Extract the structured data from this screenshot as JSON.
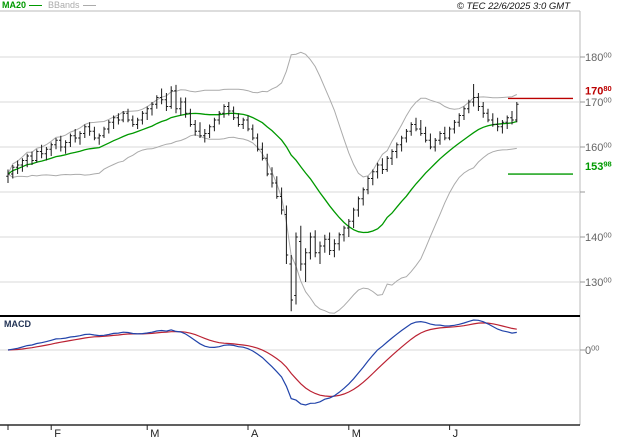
{
  "legend": {
    "ma20_label": "MA20",
    "bbands_label": "BBands"
  },
  "copyright": "© TEC 22/6/2025 3:0 GMT",
  "macd_label": "MACD",
  "colors": {
    "ma20": "#009900",
    "bbands": "#ababab",
    "candle": "#1a1a1a",
    "grid": "#d9d9d9",
    "frame": "#bbbbbb",
    "separator": "#000000",
    "axis_text": "#666666",
    "month_text": "#222222",
    "level_resistance": "#bb0000",
    "level_support": "#009900",
    "macd_line": "#2244aa",
    "macd_signal": "#bb2233"
  },
  "chart_data": {
    "type": "ohlc",
    "title": "Daily price chart with MA20, Bollinger Bands and MACD",
    "months": {
      "labels": [
        "F",
        "M",
        "A",
        "M",
        "J"
      ],
      "start_indices": [
        9,
        29,
        50,
        71,
        92
      ]
    },
    "y_axis": {
      "gridlines": [
        180,
        170,
        160,
        150,
        140,
        130
      ],
      "labeled": [
        180,
        170,
        160,
        140,
        130
      ],
      "price_decimals": 2
    },
    "levels": [
      {
        "value": 170.8,
        "type": "resistance"
      },
      {
        "value": 153.98,
        "type": "support"
      }
    ],
    "macd_zero_label": 0,
    "indicators": {
      "ma_period": 20,
      "bollinger": "20, 2 std",
      "macd": "12,26,9"
    },
    "ohlc": [
      [
        153.5,
        155.0,
        152.0,
        154.0
      ],
      [
        154.0,
        156.0,
        153.0,
        155.5
      ],
      [
        155.5,
        157.0,
        154.0,
        156.0
      ],
      [
        156.0,
        157.5,
        154.5,
        157.0
      ],
      [
        157.0,
        158.5,
        155.5,
        158.0
      ],
      [
        158.0,
        159.0,
        156.0,
        157.0
      ],
      [
        157.0,
        159.5,
        156.5,
        159.0
      ],
      [
        159.0,
        160.5,
        157.5,
        158.5
      ],
      [
        158.5,
        160.0,
        157.0,
        159.5
      ],
      [
        159.5,
        161.0,
        158.0,
        160.5
      ],
      [
        160.5,
        162.0,
        159.5,
        161.5
      ],
      [
        161.5,
        162.5,
        159.0,
        160.0
      ],
      [
        160.0,
        161.5,
        158.5,
        161.0
      ],
      [
        161.0,
        163.0,
        160.0,
        162.5
      ],
      [
        162.5,
        164.0,
        161.0,
        162.0
      ],
      [
        162.0,
        163.5,
        160.5,
        163.0
      ],
      [
        163.0,
        165.0,
        162.0,
        164.5
      ],
      [
        164.5,
        165.5,
        162.5,
        163.5
      ],
      [
        163.5,
        164.5,
        161.5,
        162.0
      ],
      [
        162.0,
        163.0,
        160.5,
        162.5
      ],
      [
        162.5,
        164.5,
        162.0,
        164.0
      ],
      [
        164.0,
        166.0,
        163.0,
        165.5
      ],
      [
        165.5,
        167.0,
        164.0,
        166.5
      ],
      [
        166.5,
        167.5,
        165.0,
        166.0
      ],
      [
        166.0,
        168.0,
        165.5,
        167.5
      ],
      [
        167.5,
        168.5,
        165.5,
        166.0
      ],
      [
        166.0,
        167.0,
        164.5,
        165.0
      ],
      [
        165.0,
        166.5,
        164.0,
        166.0
      ],
      [
        166.0,
        168.0,
        165.0,
        167.5
      ],
      [
        167.5,
        169.0,
        166.0,
        168.5
      ],
      [
        168.5,
        170.0,
        167.0,
        169.5
      ],
      [
        169.5,
        171.5,
        168.5,
        171.0
      ],
      [
        171.0,
        173.0,
        169.5,
        170.5
      ],
      [
        170.5,
        172.0,
        168.0,
        169.0
      ],
      [
        169.0,
        173.5,
        168.5,
        172.5
      ],
      [
        172.5,
        173.8,
        167.5,
        168.5
      ],
      [
        168.5,
        171.0,
        167.0,
        170.0
      ],
      [
        170.0,
        171.0,
        166.5,
        167.5
      ],
      [
        167.5,
        168.5,
        164.5,
        165.0
      ],
      [
        165.0,
        166.0,
        162.5,
        163.5
      ],
      [
        163.5,
        165.5,
        162.0,
        162.5
      ],
      [
        162.5,
        164.0,
        161.0,
        163.0
      ],
      [
        163.0,
        165.0,
        162.0,
        164.5
      ],
      [
        164.5,
        166.5,
        163.5,
        166.0
      ],
      [
        166.0,
        168.0,
        165.0,
        167.5
      ],
      [
        167.5,
        169.5,
        166.5,
        169.0
      ],
      [
        169.0,
        170.0,
        167.0,
        168.0
      ],
      [
        168.0,
        169.0,
        166.0,
        166.5
      ],
      [
        166.5,
        167.5,
        164.5,
        165.0
      ],
      [
        165.0,
        166.5,
        164.0,
        166.0
      ],
      [
        166.0,
        167.0,
        163.5,
        164.0
      ],
      [
        164.0,
        165.0,
        161.5,
        162.0
      ],
      [
        162.0,
        163.0,
        159.0,
        159.5
      ],
      [
        159.5,
        161.0,
        157.0,
        157.5
      ],
      [
        157.5,
        158.5,
        153.5,
        154.0
      ],
      [
        154.0,
        155.5,
        151.0,
        152.0
      ],
      [
        152.0,
        153.5,
        148.5,
        149.0
      ],
      [
        149.0,
        151.0,
        145.0,
        146.0
      ],
      [
        145.0,
        147.0,
        134.0,
        136.0
      ],
      [
        134.0,
        136.0,
        123.5,
        126.0
      ],
      [
        127.0,
        141.0,
        125.0,
        140.0
      ],
      [
        139.0,
        142.5,
        132.5,
        134.0
      ],
      [
        134.0,
        137.5,
        130.0,
        136.5
      ],
      [
        136.5,
        141.0,
        135.0,
        140.0
      ],
      [
        140.0,
        141.5,
        135.5,
        136.5
      ],
      [
        136.5,
        139.0,
        134.0,
        138.0
      ],
      [
        138.0,
        140.5,
        136.5,
        139.5
      ],
      [
        139.5,
        141.0,
        136.0,
        137.0
      ],
      [
        137.0,
        139.5,
        135.5,
        138.5
      ],
      [
        138.5,
        141.0,
        137.0,
        140.5
      ],
      [
        140.5,
        142.5,
        139.0,
        142.0
      ],
      [
        142.0,
        144.0,
        140.0,
        143.5
      ],
      [
        143.5,
        146.5,
        142.0,
        146.0
      ],
      [
        146.0,
        149.0,
        144.5,
        148.5
      ],
      [
        148.5,
        151.0,
        147.0,
        150.5
      ],
      [
        150.5,
        153.5,
        149.5,
        153.0
      ],
      [
        153.0,
        155.0,
        151.5,
        154.5
      ],
      [
        154.5,
        156.5,
        153.0,
        156.0
      ],
      [
        156.0,
        157.5,
        154.0,
        155.0
      ],
      [
        155.0,
        158.0,
        154.5,
        157.5
      ],
      [
        157.5,
        159.5,
        156.0,
        159.0
      ],
      [
        159.0,
        161.0,
        157.5,
        160.5
      ],
      [
        160.5,
        162.5,
        159.0,
        162.0
      ],
      [
        162.0,
        164.0,
        161.0,
        163.5
      ],
      [
        163.5,
        165.5,
        162.5,
        165.0
      ],
      [
        165.0,
        166.5,
        163.5,
        164.0
      ],
      [
        164.0,
        166.0,
        162.5,
        163.0
      ],
      [
        163.0,
        164.5,
        161.0,
        161.5
      ],
      [
        161.5,
        163.0,
        159.5,
        160.0
      ],
      [
        160.0,
        162.0,
        159.0,
        161.5
      ],
      [
        161.5,
        163.5,
        160.5,
        163.0
      ],
      [
        163.0,
        164.5,
        161.5,
        162.0
      ],
      [
        162.0,
        164.5,
        161.5,
        164.0
      ],
      [
        164.0,
        166.0,
        163.0,
        165.5
      ],
      [
        165.5,
        167.5,
        164.5,
        167.0
      ],
      [
        167.0,
        169.0,
        166.0,
        168.5
      ],
      [
        168.5,
        170.5,
        167.5,
        170.0
      ],
      [
        170.0,
        174.0,
        169.0,
        171.0
      ],
      [
        171.0,
        172.0,
        168.0,
        169.0
      ],
      [
        169.0,
        170.0,
        166.5,
        167.5
      ],
      [
        167.5,
        168.5,
        165.5,
        166.0
      ],
      [
        166.0,
        167.5,
        164.5,
        165.0
      ],
      [
        165.0,
        166.5,
        163.5,
        164.5
      ],
      [
        164.5,
        166.0,
        163.0,
        165.5
      ],
      [
        165.5,
        167.0,
        164.0,
        166.5
      ],
      [
        166.5,
        168.0,
        165.0,
        166.0
      ],
      [
        166.0,
        170.0,
        165.5,
        169.5
      ]
    ]
  }
}
